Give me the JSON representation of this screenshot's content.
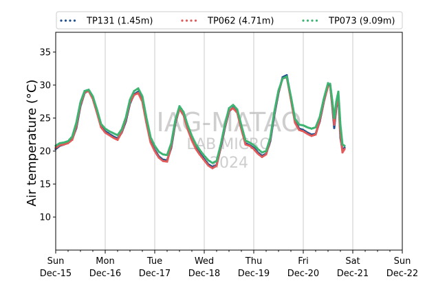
{
  "chart_data": {
    "type": "scatter",
    "ylabel": "Air temperature (°C)",
    "ylim": [
      5,
      38
    ],
    "yticks": [
      10,
      15,
      20,
      25,
      30,
      35
    ],
    "xlim": [
      "2024-12-15T00:00",
      "2024-12-22T00:00"
    ],
    "xticks": [
      {
        "date": "2024-12-15",
        "day": "Sun",
        "label": "Dec-15"
      },
      {
        "date": "2024-12-16",
        "day": "Mon",
        "label": "Dec-16"
      },
      {
        "date": "2024-12-17",
        "day": "Tue",
        "label": "Dec-17"
      },
      {
        "date": "2024-12-18",
        "day": "Wed",
        "label": "Dec-18"
      },
      {
        "date": "2024-12-19",
        "day": "Thu",
        "label": "Dec-19"
      },
      {
        "date": "2024-12-20",
        "day": "Fri",
        "label": "Dec-20"
      },
      {
        "date": "2024-12-21",
        "day": "Sat",
        "label": "Dec-21"
      },
      {
        "date": "2024-12-22",
        "day": "Sun",
        "label": "Dec-22"
      }
    ],
    "grid": "x-major",
    "legend_position": "top",
    "watermark": [
      "IAG-MATAO",
      "LAB MICRO",
      "2024"
    ],
    "series": [
      {
        "name": "TP131 (1.45m)",
        "color": "#1f4e8c",
        "points": [
          [
            "2024-12-15T00:00",
            20.3
          ],
          [
            "2024-12-15T02:00",
            20.8
          ],
          [
            "2024-12-15T04:00",
            21.0
          ],
          [
            "2024-12-15T06:00",
            21.3
          ],
          [
            "2024-12-15T08:00",
            21.8
          ],
          [
            "2024-12-15T10:00",
            23.5
          ],
          [
            "2024-12-15T12:00",
            26.8
          ],
          [
            "2024-12-15T14:00",
            28.8
          ],
          [
            "2024-12-15T16:00",
            29.2
          ],
          [
            "2024-12-15T18:00",
            28.0
          ],
          [
            "2024-12-15T20:00",
            26.0
          ],
          [
            "2024-12-15T22:00",
            23.8
          ],
          [
            "2024-12-16T00:00",
            23.0
          ],
          [
            "2024-12-16T02:00",
            22.6
          ],
          [
            "2024-12-16T04:00",
            22.2
          ],
          [
            "2024-12-16T06:00",
            21.9
          ],
          [
            "2024-12-16T08:00",
            22.8
          ],
          [
            "2024-12-16T10:00",
            24.5
          ],
          [
            "2024-12-16T12:00",
            27.2
          ],
          [
            "2024-12-16T14:00",
            28.6
          ],
          [
            "2024-12-16T16:00",
            29.0
          ],
          [
            "2024-12-16T18:00",
            27.8
          ],
          [
            "2024-12-16T20:00",
            24.5
          ],
          [
            "2024-12-16T22:00",
            21.5
          ],
          [
            "2024-12-17T00:00",
            20.2
          ],
          [
            "2024-12-17T02:00",
            19.2
          ],
          [
            "2024-12-17T04:00",
            18.7
          ],
          [
            "2024-12-17T06:00",
            18.6
          ],
          [
            "2024-12-17T08:00",
            20.5
          ],
          [
            "2024-12-17T10:00",
            24.2
          ],
          [
            "2024-12-17T12:00",
            26.5
          ],
          [
            "2024-12-17T14:00",
            25.5
          ],
          [
            "2024-12-17T16:00",
            23.5
          ],
          [
            "2024-12-17T18:00",
            21.8
          ],
          [
            "2024-12-17T20:00",
            20.5
          ],
          [
            "2024-12-17T22:00",
            19.6
          ],
          [
            "2024-12-18T00:00",
            18.8
          ],
          [
            "2024-12-18T02:00",
            18.0
          ],
          [
            "2024-12-18T04:00",
            17.6
          ],
          [
            "2024-12-18T06:00",
            17.9
          ],
          [
            "2024-12-18T08:00",
            20.5
          ],
          [
            "2024-12-18T10:00",
            23.5
          ],
          [
            "2024-12-18T12:00",
            26.0
          ],
          [
            "2024-12-18T14:00",
            26.6
          ],
          [
            "2024-12-18T16:00",
            26.0
          ],
          [
            "2024-12-18T18:00",
            23.5
          ],
          [
            "2024-12-18T20:00",
            21.2
          ],
          [
            "2024-12-18T22:00",
            20.9
          ],
          [
            "2024-12-19T00:00",
            20.5
          ],
          [
            "2024-12-19T02:00",
            19.8
          ],
          [
            "2024-12-19T04:00",
            19.3
          ],
          [
            "2024-12-19T06:00",
            19.6
          ],
          [
            "2024-12-19T08:00",
            21.5
          ],
          [
            "2024-12-19T10:00",
            25.5
          ],
          [
            "2024-12-19T12:00",
            28.8
          ],
          [
            "2024-12-19T14:00",
            31.2
          ],
          [
            "2024-12-19T16:00",
            31.5
          ],
          [
            "2024-12-19T18:00",
            28.0
          ],
          [
            "2024-12-19T20:00",
            24.5
          ],
          [
            "2024-12-19T22:00",
            23.4
          ],
          [
            "2024-12-20T00:00",
            23.2
          ],
          [
            "2024-12-20T02:00",
            22.8
          ],
          [
            "2024-12-20T04:00",
            22.5
          ],
          [
            "2024-12-20T06:00",
            22.6
          ],
          [
            "2024-12-20T08:00",
            24.5
          ],
          [
            "2024-12-20T10:00",
            27.5
          ],
          [
            "2024-12-20T12:00",
            30.0
          ],
          [
            "2024-12-20T13:00",
            30.1
          ],
          [
            "2024-12-20T14:00",
            27.0
          ],
          [
            "2024-12-20T15:00",
            23.5
          ],
          [
            "2024-12-20T16:00",
            26.5
          ],
          [
            "2024-12-20T17:00",
            28.5
          ],
          [
            "2024-12-20T18:00",
            22.0
          ],
          [
            "2024-12-20T19:00",
            20.2
          ],
          [
            "2024-12-20T20:00",
            20.5
          ]
        ]
      },
      {
        "name": "TP062 (4.71m)",
        "color": "#e05a5a",
        "points": [
          [
            "2024-12-15T00:00",
            20.5
          ],
          [
            "2024-12-15T02:00",
            20.9
          ],
          [
            "2024-12-15T04:00",
            21.0
          ],
          [
            "2024-12-15T06:00",
            21.2
          ],
          [
            "2024-12-15T08:00",
            21.7
          ],
          [
            "2024-12-15T10:00",
            23.8
          ],
          [
            "2024-12-15T12:00",
            27.0
          ],
          [
            "2024-12-15T14:00",
            28.9
          ],
          [
            "2024-12-15T16:00",
            29.1
          ],
          [
            "2024-12-15T18:00",
            27.9
          ],
          [
            "2024-12-15T20:00",
            25.8
          ],
          [
            "2024-12-15T22:00",
            23.6
          ],
          [
            "2024-12-16T00:00",
            22.8
          ],
          [
            "2024-12-16T02:00",
            22.4
          ],
          [
            "2024-12-16T04:00",
            22.0
          ],
          [
            "2024-12-16T06:00",
            21.7
          ],
          [
            "2024-12-16T08:00",
            22.9
          ],
          [
            "2024-12-16T10:00",
            24.8
          ],
          [
            "2024-12-16T12:00",
            27.4
          ],
          [
            "2024-12-16T14:00",
            28.5
          ],
          [
            "2024-12-16T16:00",
            28.8
          ],
          [
            "2024-12-16T18:00",
            27.5
          ],
          [
            "2024-12-16T20:00",
            24.2
          ],
          [
            "2024-12-16T22:00",
            21.3
          ],
          [
            "2024-12-17T00:00",
            20.0
          ],
          [
            "2024-12-17T02:00",
            19.0
          ],
          [
            "2024-12-17T04:00",
            18.5
          ],
          [
            "2024-12-17T06:00",
            18.4
          ],
          [
            "2024-12-17T08:00",
            20.8
          ],
          [
            "2024-12-17T10:00",
            24.4
          ],
          [
            "2024-12-17T12:00",
            26.4
          ],
          [
            "2024-12-17T14:00",
            25.4
          ],
          [
            "2024-12-17T16:00",
            23.3
          ],
          [
            "2024-12-17T18:00",
            21.6
          ],
          [
            "2024-12-17T20:00",
            20.3
          ],
          [
            "2024-12-17T22:00",
            19.4
          ],
          [
            "2024-12-18T00:00",
            18.6
          ],
          [
            "2024-12-18T02:00",
            17.8
          ],
          [
            "2024-12-18T04:00",
            17.4
          ],
          [
            "2024-12-18T06:00",
            17.8
          ],
          [
            "2024-12-18T08:00",
            20.7
          ],
          [
            "2024-12-18T10:00",
            23.7
          ],
          [
            "2024-12-18T12:00",
            26.1
          ],
          [
            "2024-12-18T14:00",
            26.5
          ],
          [
            "2024-12-18T16:00",
            25.8
          ],
          [
            "2024-12-18T18:00",
            23.3
          ],
          [
            "2024-12-18T20:00",
            21.0
          ],
          [
            "2024-12-18T22:00",
            20.8
          ],
          [
            "2024-12-19T00:00",
            20.3
          ],
          [
            "2024-12-19T02:00",
            19.6
          ],
          [
            "2024-12-19T04:00",
            19.1
          ],
          [
            "2024-12-19T06:00",
            19.5
          ],
          [
            "2024-12-19T08:00",
            21.8
          ],
          [
            "2024-12-19T10:00",
            25.8
          ],
          [
            "2024-12-19T12:00",
            29.0
          ],
          [
            "2024-12-19T14:00",
            31.0
          ],
          [
            "2024-12-19T16:00",
            31.2
          ],
          [
            "2024-12-19T18:00",
            27.8
          ],
          [
            "2024-12-19T20:00",
            24.3
          ],
          [
            "2024-12-19T22:00",
            23.2
          ],
          [
            "2024-12-20T00:00",
            23.0
          ],
          [
            "2024-12-20T02:00",
            22.6
          ],
          [
            "2024-12-20T04:00",
            22.3
          ],
          [
            "2024-12-20T06:00",
            22.5
          ],
          [
            "2024-12-20T08:00",
            24.7
          ],
          [
            "2024-12-20T10:00",
            27.6
          ],
          [
            "2024-12-20T12:00",
            29.8
          ],
          [
            "2024-12-20T13:00",
            29.9
          ],
          [
            "2024-12-20T14:00",
            27.2
          ],
          [
            "2024-12-20T15:00",
            24.0
          ],
          [
            "2024-12-20T16:00",
            26.8
          ],
          [
            "2024-12-20T17:00",
            28.2
          ],
          [
            "2024-12-20T18:00",
            22.5
          ],
          [
            "2024-12-20T19:00",
            19.8
          ],
          [
            "2024-12-20T20:00",
            20.3
          ]
        ]
      },
      {
        "name": "TP073 (9.09m)",
        "color": "#3cb371",
        "points": [
          [
            "2024-12-15T00:00",
            20.8
          ],
          [
            "2024-12-15T02:00",
            21.2
          ],
          [
            "2024-12-15T04:00",
            21.3
          ],
          [
            "2024-12-15T06:00",
            21.5
          ],
          [
            "2024-12-15T08:00",
            22.2
          ],
          [
            "2024-12-15T10:00",
            24.3
          ],
          [
            "2024-12-15T12:00",
            27.4
          ],
          [
            "2024-12-15T14:00",
            29.1
          ],
          [
            "2024-12-15T16:00",
            29.3
          ],
          [
            "2024-12-15T18:00",
            28.3
          ],
          [
            "2024-12-15T20:00",
            26.3
          ],
          [
            "2024-12-15T22:00",
            24.1
          ],
          [
            "2024-12-16T00:00",
            23.4
          ],
          [
            "2024-12-16T02:00",
            23.0
          ],
          [
            "2024-12-16T04:00",
            22.7
          ],
          [
            "2024-12-16T06:00",
            22.4
          ],
          [
            "2024-12-16T08:00",
            23.3
          ],
          [
            "2024-12-16T10:00",
            25.1
          ],
          [
            "2024-12-16T12:00",
            27.8
          ],
          [
            "2024-12-16T14:00",
            29.1
          ],
          [
            "2024-12-16T16:00",
            29.5
          ],
          [
            "2024-12-16T18:00",
            28.3
          ],
          [
            "2024-12-16T20:00",
            25.0
          ],
          [
            "2024-12-16T22:00",
            22.1
          ],
          [
            "2024-12-17T00:00",
            20.8
          ],
          [
            "2024-12-17T02:00",
            19.9
          ],
          [
            "2024-12-17T04:00",
            19.5
          ],
          [
            "2024-12-17T06:00",
            19.4
          ],
          [
            "2024-12-17T08:00",
            21.2
          ],
          [
            "2024-12-17T10:00",
            24.7
          ],
          [
            "2024-12-17T12:00",
            26.8
          ],
          [
            "2024-12-17T14:00",
            25.9
          ],
          [
            "2024-12-17T16:00",
            23.9
          ],
          [
            "2024-12-17T18:00",
            22.3
          ],
          [
            "2024-12-17T20:00",
            21.0
          ],
          [
            "2024-12-17T22:00",
            20.1
          ],
          [
            "2024-12-18T00:00",
            19.3
          ],
          [
            "2024-12-18T02:00",
            18.6
          ],
          [
            "2024-12-18T04:00",
            18.2
          ],
          [
            "2024-12-18T06:00",
            18.5
          ],
          [
            "2024-12-18T08:00",
            21.0
          ],
          [
            "2024-12-18T10:00",
            24.0
          ],
          [
            "2024-12-18T12:00",
            26.5
          ],
          [
            "2024-12-18T14:00",
            27.0
          ],
          [
            "2024-12-18T16:00",
            26.3
          ],
          [
            "2024-12-18T18:00",
            23.9
          ],
          [
            "2024-12-18T20:00",
            21.6
          ],
          [
            "2024-12-18T22:00",
            21.3
          ],
          [
            "2024-12-19T00:00",
            20.9
          ],
          [
            "2024-12-19T02:00",
            20.3
          ],
          [
            "2024-12-19T04:00",
            19.8
          ],
          [
            "2024-12-19T06:00",
            20.0
          ],
          [
            "2024-12-19T08:00",
            22.0
          ],
          [
            "2024-12-19T10:00",
            26.0
          ],
          [
            "2024-12-19T12:00",
            29.2
          ],
          [
            "2024-12-19T14:00",
            31.0
          ],
          [
            "2024-12-19T16:00",
            31.3
          ],
          [
            "2024-12-19T18:00",
            28.3
          ],
          [
            "2024-12-19T20:00",
            24.9
          ],
          [
            "2024-12-19T22:00",
            24.0
          ],
          [
            "2024-12-20T00:00",
            23.9
          ],
          [
            "2024-12-20T02:00",
            23.6
          ],
          [
            "2024-12-20T04:00",
            23.4
          ],
          [
            "2024-12-20T06:00",
            23.6
          ],
          [
            "2024-12-20T08:00",
            25.2
          ],
          [
            "2024-12-20T10:00",
            28.0
          ],
          [
            "2024-12-20T12:00",
            30.3
          ],
          [
            "2024-12-20T13:00",
            30.2
          ],
          [
            "2024-12-20T14:00",
            27.8
          ],
          [
            "2024-12-20T15:00",
            25.0
          ],
          [
            "2024-12-20T16:00",
            27.5
          ],
          [
            "2024-12-20T17:00",
            29.0
          ],
          [
            "2024-12-20T18:00",
            24.0
          ],
          [
            "2024-12-20T19:00",
            21.0
          ],
          [
            "2024-12-20T20:00",
            20.8
          ]
        ]
      }
    ]
  }
}
